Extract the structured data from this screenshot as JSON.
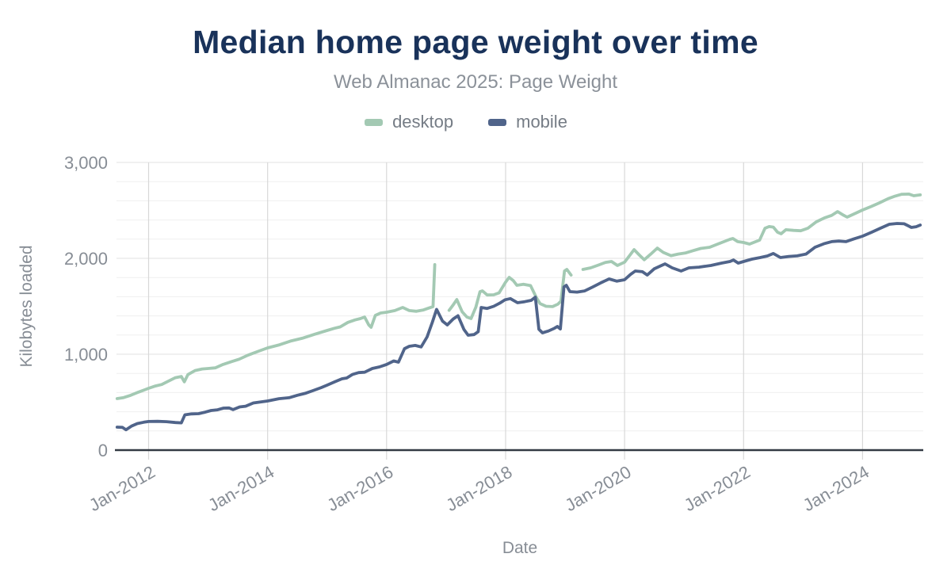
{
  "header": {
    "title": "Median home page weight over time",
    "subtitle": "Web Almanac 2025: Page Weight"
  },
  "chart_data": {
    "type": "line",
    "title": "Median home page weight over time",
    "subtitle": "Web Almanac 2025: Page Weight",
    "xlabel": "Date",
    "ylabel": "Kilobytes loaded",
    "legend_position": "top",
    "grid": true,
    "x_domain": [
      2011.46,
      2025.02
    ],
    "ylim": [
      0,
      3000
    ],
    "minor_grid_step": 200,
    "y_ticks": [
      {
        "value": 0,
        "label": "0"
      },
      {
        "value": 1000,
        "label": "1,000"
      },
      {
        "value": 2000,
        "label": "2,000"
      },
      {
        "value": 3000,
        "label": "3,000"
      }
    ],
    "x_ticks": [
      {
        "value": 2012,
        "label": "Jan-2012"
      },
      {
        "value": 2014,
        "label": "Jan-2014"
      },
      {
        "value": 2016,
        "label": "Jan-2016"
      },
      {
        "value": 2018,
        "label": "Jan-2018"
      },
      {
        "value": 2020,
        "label": "Jan-2020"
      },
      {
        "value": 2022,
        "label": "Jan-2022"
      },
      {
        "value": 2024,
        "label": "Jan-2024"
      }
    ],
    "series": [
      {
        "name": "desktop",
        "color": "#a3c9b3",
        "points": [
          [
            2011.47,
            537
          ],
          [
            2011.58,
            548
          ],
          [
            2011.7,
            572
          ],
          [
            2011.83,
            605
          ],
          [
            2011.93,
            628
          ],
          [
            2012.0,
            645
          ],
          [
            2012.1,
            666
          ],
          [
            2012.22,
            684
          ],
          [
            2012.33,
            718
          ],
          [
            2012.45,
            755
          ],
          [
            2012.55,
            768
          ],
          [
            2012.6,
            712
          ],
          [
            2012.66,
            788
          ],
          [
            2012.78,
            830
          ],
          [
            2012.9,
            846
          ],
          [
            2013.0,
            851
          ],
          [
            2013.12,
            858
          ],
          [
            2013.25,
            893
          ],
          [
            2013.4,
            924
          ],
          [
            2013.52,
            948
          ],
          [
            2013.67,
            990
          ],
          [
            2013.84,
            1030
          ],
          [
            2014.0,
            1066
          ],
          [
            2014.2,
            1098
          ],
          [
            2014.4,
            1140
          ],
          [
            2014.58,
            1166
          ],
          [
            2014.79,
            1208
          ],
          [
            2015.0,
            1248
          ],
          [
            2015.12,
            1270
          ],
          [
            2015.22,
            1285
          ],
          [
            2015.35,
            1332
          ],
          [
            2015.47,
            1358
          ],
          [
            2015.56,
            1372
          ],
          [
            2015.63,
            1388
          ],
          [
            2015.7,
            1306
          ],
          [
            2015.74,
            1281
          ],
          [
            2015.81,
            1405
          ],
          [
            2015.9,
            1430
          ],
          [
            2016.0,
            1438
          ],
          [
            2016.14,
            1455
          ],
          [
            2016.27,
            1488
          ],
          [
            2016.38,
            1455
          ],
          [
            2016.5,
            1448
          ],
          [
            2016.62,
            1462
          ],
          [
            2016.72,
            1484
          ],
          [
            2016.78,
            1497
          ],
          [
            2016.81,
            1935
          ],
          null,
          [
            2017.05,
            1458
          ],
          [
            2017.12,
            1515
          ],
          [
            2017.18,
            1570
          ],
          [
            2017.27,
            1442
          ],
          [
            2017.35,
            1388
          ],
          [
            2017.42,
            1372
          ],
          [
            2017.5,
            1490
          ],
          [
            2017.57,
            1653
          ],
          [
            2017.61,
            1661
          ],
          [
            2017.69,
            1618
          ],
          [
            2017.8,
            1620
          ],
          [
            2017.89,
            1640
          ],
          [
            2018.0,
            1752
          ],
          [
            2018.06,
            1802
          ],
          [
            2018.13,
            1768
          ],
          [
            2018.19,
            1719
          ],
          [
            2018.3,
            1730
          ],
          [
            2018.42,
            1716
          ],
          [
            2018.52,
            1588
          ],
          [
            2018.58,
            1528
          ],
          [
            2018.68,
            1500
          ],
          [
            2018.79,
            1497
          ],
          [
            2018.88,
            1522
          ],
          [
            2018.93,
            1554
          ],
          [
            2018.99,
            1868
          ],
          [
            2019.03,
            1884
          ],
          [
            2019.1,
            1826
          ],
          null,
          [
            2019.3,
            1884
          ],
          [
            2019.43,
            1901
          ],
          [
            2019.56,
            1930
          ],
          [
            2019.68,
            1958
          ],
          [
            2019.78,
            1967
          ],
          [
            2019.88,
            1926
          ],
          [
            2020.0,
            1960
          ],
          [
            2020.08,
            2025
          ],
          [
            2020.16,
            2091
          ],
          [
            2020.25,
            2033
          ],
          [
            2020.33,
            1985
          ],
          [
            2020.44,
            2045
          ],
          [
            2020.55,
            2107
          ],
          [
            2020.65,
            2062
          ],
          [
            2020.78,
            2028
          ],
          [
            2020.9,
            2045
          ],
          [
            2021.02,
            2055
          ],
          [
            2021.15,
            2080
          ],
          [
            2021.28,
            2103
          ],
          [
            2021.43,
            2116
          ],
          [
            2021.6,
            2157
          ],
          [
            2021.77,
            2198
          ],
          [
            2021.82,
            2207
          ],
          [
            2021.9,
            2174
          ],
          [
            2022.0,
            2165
          ],
          [
            2022.1,
            2149
          ],
          [
            2022.27,
            2190
          ],
          [
            2022.36,
            2314
          ],
          [
            2022.43,
            2331
          ],
          [
            2022.5,
            2326
          ],
          [
            2022.57,
            2273
          ],
          [
            2022.63,
            2256
          ],
          [
            2022.71,
            2298
          ],
          [
            2022.84,
            2292
          ],
          [
            2022.96,
            2288
          ],
          [
            2023.08,
            2314
          ],
          [
            2023.22,
            2380
          ],
          [
            2023.36,
            2422
          ],
          [
            2023.48,
            2448
          ],
          [
            2023.58,
            2488
          ],
          [
            2023.68,
            2450
          ],
          [
            2023.74,
            2430
          ],
          [
            2023.86,
            2464
          ],
          [
            2024.0,
            2504
          ],
          [
            2024.14,
            2540
          ],
          [
            2024.28,
            2578
          ],
          [
            2024.43,
            2622
          ],
          [
            2024.55,
            2650
          ],
          [
            2024.66,
            2669
          ],
          [
            2024.78,
            2670
          ],
          [
            2024.86,
            2653
          ],
          [
            2024.97,
            2662
          ]
        ]
      },
      {
        "name": "mobile",
        "color": "#50648a",
        "points": [
          [
            2011.47,
            240
          ],
          [
            2011.56,
            237
          ],
          [
            2011.62,
            212
          ],
          [
            2011.71,
            250
          ],
          [
            2011.81,
            277
          ],
          [
            2011.92,
            291
          ],
          [
            2012.0,
            298
          ],
          [
            2012.15,
            300
          ],
          [
            2012.3,
            297
          ],
          [
            2012.45,
            288
          ],
          [
            2012.55,
            284
          ],
          [
            2012.61,
            368
          ],
          [
            2012.72,
            378
          ],
          [
            2012.84,
            380
          ],
          [
            2012.95,
            396
          ],
          [
            2013.05,
            413
          ],
          [
            2013.16,
            421
          ],
          [
            2013.26,
            438
          ],
          [
            2013.35,
            440
          ],
          [
            2013.42,
            422
          ],
          [
            2013.53,
            450
          ],
          [
            2013.63,
            458
          ],
          [
            2013.76,
            492
          ],
          [
            2013.88,
            502
          ],
          [
            2014.0,
            512
          ],
          [
            2014.19,
            536
          ],
          [
            2014.36,
            546
          ],
          [
            2014.5,
            572
          ],
          [
            2014.63,
            592
          ],
          [
            2014.76,
            620
          ],
          [
            2014.9,
            652
          ],
          [
            2015.0,
            678
          ],
          [
            2015.13,
            712
          ],
          [
            2015.25,
            744
          ],
          [
            2015.33,
            752
          ],
          [
            2015.43,
            790
          ],
          [
            2015.53,
            808
          ],
          [
            2015.63,
            812
          ],
          [
            2015.76,
            851
          ],
          [
            2015.88,
            868
          ],
          [
            2016.0,
            893
          ],
          [
            2016.12,
            930
          ],
          [
            2016.2,
            917
          ],
          [
            2016.3,
            1058
          ],
          [
            2016.38,
            1083
          ],
          [
            2016.48,
            1092
          ],
          [
            2016.58,
            1076
          ],
          [
            2016.68,
            1180
          ],
          [
            2016.77,
            1335
          ],
          [
            2016.84,
            1468
          ],
          [
            2016.94,
            1345
          ],
          [
            2017.02,
            1306
          ],
          [
            2017.12,
            1368
          ],
          [
            2017.2,
            1402
          ],
          [
            2017.3,
            1258
          ],
          [
            2017.37,
            1198
          ],
          [
            2017.47,
            1205
          ],
          [
            2017.54,
            1235
          ],
          [
            2017.59,
            1488
          ],
          [
            2017.69,
            1478
          ],
          [
            2017.8,
            1500
          ],
          [
            2017.9,
            1532
          ],
          [
            2017.99,
            1568
          ],
          [
            2018.08,
            1580
          ],
          [
            2018.2,
            1537
          ],
          [
            2018.32,
            1548
          ],
          [
            2018.43,
            1562
          ],
          [
            2018.5,
            1595
          ],
          [
            2018.56,
            1260
          ],
          [
            2018.62,
            1223
          ],
          [
            2018.72,
            1242
          ],
          [
            2018.82,
            1270
          ],
          [
            2018.87,
            1289
          ],
          [
            2018.92,
            1264
          ],
          [
            2018.98,
            1702
          ],
          [
            2019.02,
            1719
          ],
          [
            2019.08,
            1653
          ],
          [
            2019.2,
            1648
          ],
          [
            2019.33,
            1660
          ],
          [
            2019.46,
            1700
          ],
          [
            2019.6,
            1745
          ],
          [
            2019.74,
            1785
          ],
          [
            2019.87,
            1762
          ],
          [
            2020.0,
            1777
          ],
          [
            2020.1,
            1832
          ],
          [
            2020.18,
            1868
          ],
          [
            2020.3,
            1860
          ],
          [
            2020.38,
            1826
          ],
          [
            2020.5,
            1892
          ],
          [
            2020.62,
            1926
          ],
          [
            2020.68,
            1942
          ],
          [
            2020.8,
            1901
          ],
          [
            2020.95,
            1868
          ],
          [
            2021.08,
            1901
          ],
          [
            2021.25,
            1908
          ],
          [
            2021.45,
            1926
          ],
          [
            2021.63,
            1950
          ],
          [
            2021.77,
            1967
          ],
          [
            2021.83,
            1983
          ],
          [
            2021.91,
            1950
          ],
          [
            2022.0,
            1967
          ],
          [
            2022.14,
            1992
          ],
          [
            2022.28,
            2008
          ],
          [
            2022.4,
            2025
          ],
          [
            2022.5,
            2050
          ],
          [
            2022.62,
            2008
          ],
          [
            2022.76,
            2020
          ],
          [
            2022.9,
            2026
          ],
          [
            2023.05,
            2045
          ],
          [
            2023.2,
            2116
          ],
          [
            2023.35,
            2152
          ],
          [
            2023.48,
            2174
          ],
          [
            2023.6,
            2180
          ],
          [
            2023.72,
            2174
          ],
          [
            2023.85,
            2202
          ],
          [
            2024.0,
            2231
          ],
          [
            2024.15,
            2272
          ],
          [
            2024.3,
            2314
          ],
          [
            2024.45,
            2355
          ],
          [
            2024.58,
            2364
          ],
          [
            2024.7,
            2360
          ],
          [
            2024.82,
            2322
          ],
          [
            2024.9,
            2330
          ],
          [
            2024.97,
            2347
          ]
        ]
      }
    ],
    "colors": {
      "title": "#19325a",
      "subtitle": "#8b9199",
      "axis_label": "#878d95",
      "axis_line": "#333a44",
      "v_gridline": "#d8d8d8",
      "h_gridline_minor": "#efefef",
      "h_gridline_major": "#e2e2e2"
    }
  }
}
